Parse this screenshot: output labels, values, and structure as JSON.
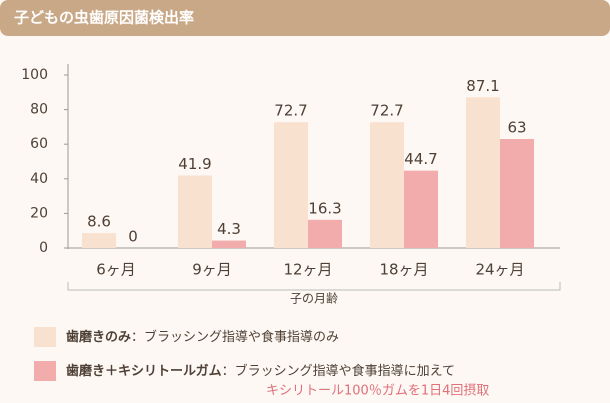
{
  "chart_data": {
    "type": "bar",
    "title": "子どもの虫歯原因菌検出率",
    "categories": [
      "6ヶ月",
      "9ヶ月",
      "12ヶ月",
      "18ヶ月",
      "24ヶ月"
    ],
    "xlabel": "子の月齢",
    "series": [
      {
        "name": "歯磨きのみ",
        "description": "：ブラッシング指導や食事指導のみ",
        "color": "#f8e1cf",
        "values": [
          8.6,
          41.9,
          72.7,
          72.7,
          87.1
        ]
      },
      {
        "name": "歯磨き＋キシリトールガム",
        "description": "：ブラッシング指導や食事指導に加えて",
        "note": "キシリトール100％ガムを1日4回摂取",
        "color": "#f3acac",
        "values": [
          0,
          4.3,
          16.3,
          44.7,
          63
        ]
      }
    ],
    "ylim": [
      0,
      100
    ],
    "yticks": [
      0,
      20,
      40,
      60,
      80,
      100
    ],
    "grid": false
  }
}
